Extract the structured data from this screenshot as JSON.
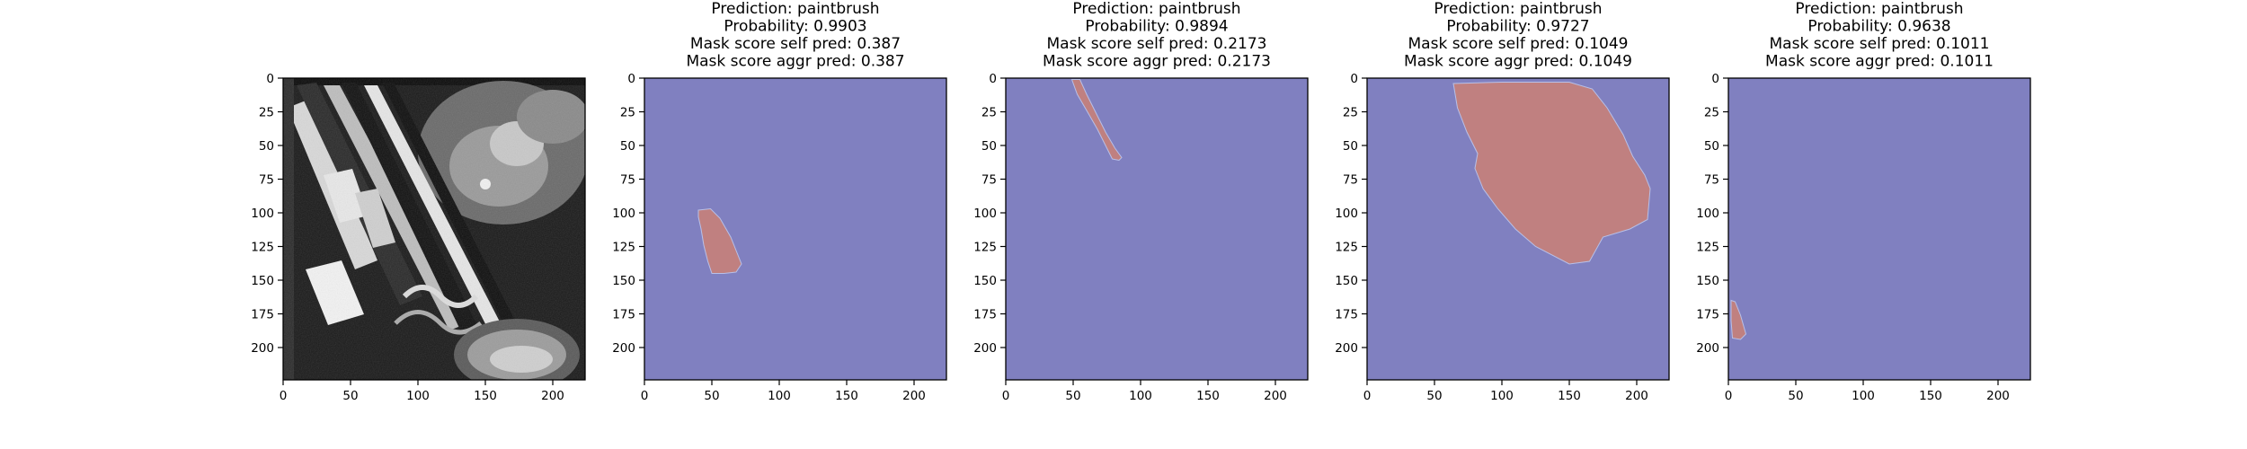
{
  "chart_data": [
    {
      "type": "image",
      "title_lines": [],
      "xlim": [
        0,
        224
      ],
      "ylim": [
        224,
        0
      ],
      "xticks": [
        0,
        50,
        100,
        150,
        200
      ],
      "yticks": [
        0,
        25,
        50,
        75,
        100,
        125,
        150,
        175,
        200
      ],
      "content": "grayscale photo of paintbrushes"
    },
    {
      "type": "heatmap",
      "title_lines": [
        "Prediction: paintbrush",
        "Probability: 0.9903",
        "Mask score self pred: 0.387",
        "Mask score aggr pred: 0.387"
      ],
      "xlim": [
        0,
        224
      ],
      "ylim": [
        224,
        0
      ],
      "xticks": [
        0,
        50,
        100,
        150,
        200
      ],
      "yticks": [
        0,
        25,
        50,
        75,
        100,
        125,
        150,
        175,
        200
      ],
      "background_color": "#8080c0",
      "mask_color": "#c08080",
      "mask_polygon": [
        [
          40,
          98
        ],
        [
          49,
          97
        ],
        [
          56,
          104
        ],
        [
          64,
          118
        ],
        [
          68,
          128
        ],
        [
          72,
          138
        ],
        [
          68,
          144
        ],
        [
          59,
          145
        ],
        [
          50,
          145
        ],
        [
          47,
          136
        ],
        [
          44,
          124
        ],
        [
          42,
          112
        ],
        [
          40,
          103
        ]
      ]
    },
    {
      "type": "heatmap",
      "title_lines": [
        "Prediction: paintbrush",
        "Probability: 0.9894",
        "Mask score self pred: 0.2173",
        "Mask score aggr pred: 0.2173"
      ],
      "xlim": [
        0,
        224
      ],
      "ylim": [
        224,
        0
      ],
      "xticks": [
        0,
        50,
        100,
        150,
        200
      ],
      "yticks": [
        0,
        25,
        50,
        75,
        100,
        125,
        150,
        175,
        200
      ],
      "background_color": "#8080c0",
      "mask_color": "#c08080",
      "mask_polygon": [
        [
          49,
          1
        ],
        [
          55,
          1
        ],
        [
          60,
          12
        ],
        [
          67,
          26
        ],
        [
          74,
          40
        ],
        [
          81,
          52
        ],
        [
          86,
          59
        ],
        [
          84,
          61
        ],
        [
          79,
          60
        ],
        [
          74,
          50
        ],
        [
          68,
          38
        ],
        [
          60,
          24
        ],
        [
          53,
          12
        ]
      ]
    },
    {
      "type": "heatmap",
      "title_lines": [
        "Prediction: paintbrush",
        "Probability: 0.9727",
        "Mask score self pred: 0.1049",
        "Mask score aggr pred: 0.1049"
      ],
      "xlim": [
        0,
        224
      ],
      "ylim": [
        224,
        0
      ],
      "xticks": [
        0,
        50,
        100,
        150,
        200
      ],
      "yticks": [
        0,
        25,
        50,
        75,
        100,
        125,
        150,
        175,
        200
      ],
      "background_color": "#8080c0",
      "mask_color": "#c08080",
      "mask_polygon": [
        [
          64,
          4
        ],
        [
          100,
          3
        ],
        [
          150,
          3
        ],
        [
          167,
          8
        ],
        [
          178,
          22
        ],
        [
          190,
          42
        ],
        [
          197,
          58
        ],
        [
          206,
          72
        ],
        [
          210,
          82
        ],
        [
          208,
          105
        ],
        [
          195,
          112
        ],
        [
          175,
          118
        ],
        [
          165,
          136
        ],
        [
          150,
          138
        ],
        [
          125,
          125
        ],
        [
          110,
          112
        ],
        [
          97,
          97
        ],
        [
          86,
          82
        ],
        [
          80,
          67
        ],
        [
          82,
          56
        ],
        [
          74,
          40
        ],
        [
          67,
          22
        ]
      ]
    },
    {
      "type": "heatmap",
      "title_lines": [
        "Prediction: paintbrush",
        "Probability: 0.9638",
        "Mask score self pred: 0.1011",
        "Mask score aggr pred: 0.1011"
      ],
      "xlim": [
        0,
        224
      ],
      "ylim": [
        224,
        0
      ],
      "xticks": [
        0,
        50,
        100,
        150,
        200
      ],
      "yticks": [
        0,
        25,
        50,
        75,
        100,
        125,
        150,
        175,
        200
      ],
      "background_color": "#8080c0",
      "mask_color": "#c08080",
      "mask_polygon": [
        [
          2,
          165
        ],
        [
          5,
          166
        ],
        [
          9,
          176
        ],
        [
          13,
          190
        ],
        [
          9,
          194
        ],
        [
          3,
          193
        ],
        [
          2,
          180
        ]
      ]
    }
  ]
}
